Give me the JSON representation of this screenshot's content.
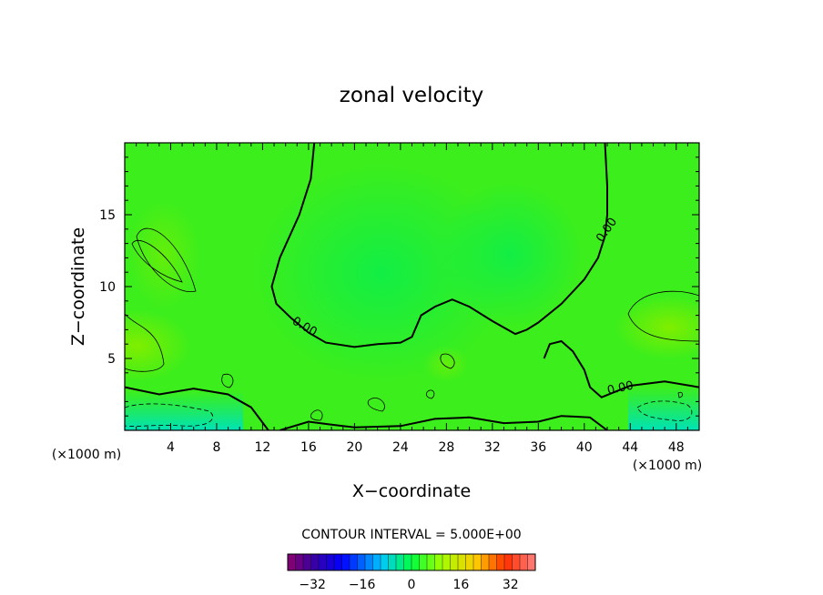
{
  "chart_data": {
    "type": "heatmap",
    "title": "zonal velocity",
    "xlabel": "X−coordinate",
    "ylabel": "Z−coordinate",
    "x_unit_left": "(×1000 m)",
    "x_unit_right": "(×1000 m)",
    "xlim": [
      0,
      50
    ],
    "ylim": [
      0,
      20
    ],
    "x_ticks": [
      4,
      8,
      12,
      16,
      20,
      24,
      28,
      32,
      36,
      40,
      44,
      48
    ],
    "x_tick_labels": [
      "4",
      "8",
      "12",
      "16",
      "20",
      "24",
      "28",
      "32",
      "36",
      "40",
      "44",
      "48"
    ],
    "y_ticks": [
      5,
      10,
      15
    ],
    "y_tick_labels": [
      "5",
      "10",
      "15"
    ],
    "contour_labels": [
      {
        "text": "0.00",
        "x": 15.5,
        "y": 7.0
      },
      {
        "text": "0.00",
        "x": 42.2,
        "y": 13.8
      },
      {
        "text": "0.00",
        "x": 43.2,
        "y": 2.7
      }
    ],
    "zero_contours": [
      [
        [
          16.5,
          20.0
        ],
        [
          16.2,
          17.5
        ],
        [
          15.2,
          15.0
        ],
        [
          13.5,
          12.0
        ],
        [
          12.8,
          10.0
        ],
        [
          13.2,
          8.8
        ],
        [
          14.5,
          7.8
        ],
        [
          16.0,
          6.8
        ],
        [
          17.5,
          6.1
        ],
        [
          20.0,
          5.8
        ],
        [
          22.0,
          6.0
        ],
        [
          24.0,
          6.1
        ],
        [
          25.0,
          6.5
        ],
        [
          25.8,
          8.0
        ],
        [
          27.0,
          8.6
        ],
        [
          28.5,
          9.1
        ],
        [
          30.0,
          8.6
        ],
        [
          32.0,
          7.6
        ],
        [
          34.0,
          6.7
        ],
        [
          35.0,
          7.0
        ],
        [
          36.0,
          7.5
        ],
        [
          38.0,
          8.8
        ],
        [
          40.0,
          10.5
        ],
        [
          41.2,
          12.0
        ],
        [
          41.8,
          13.5
        ],
        [
          42.0,
          15.0
        ],
        [
          42.0,
          17.0
        ],
        [
          41.8,
          20.0
        ]
      ],
      [
        [
          36.5,
          5.0
        ],
        [
          37.0,
          6.0
        ],
        [
          38.0,
          6.2
        ],
        [
          39.0,
          5.5
        ],
        [
          40.0,
          4.2
        ],
        [
          40.5,
          3.0
        ],
        [
          41.5,
          2.3
        ],
        [
          44.0,
          3.1
        ],
        [
          47.0,
          3.4
        ],
        [
          50.0,
          3.0
        ]
      ],
      [
        [
          0.0,
          3.0
        ],
        [
          3.0,
          2.5
        ],
        [
          6.0,
          2.9
        ],
        [
          9.0,
          2.5
        ],
        [
          11.0,
          1.6
        ],
        [
          12.5,
          0.0
        ]
      ],
      [
        [
          13.5,
          0.0
        ],
        [
          16.0,
          0.6
        ],
        [
          18.0,
          0.4
        ],
        [
          20.0,
          0.2
        ],
        [
          24.0,
          0.3
        ],
        [
          27.0,
          0.8
        ],
        [
          30.0,
          0.9
        ],
        [
          33.0,
          0.5
        ],
        [
          36.0,
          0.6
        ],
        [
          38.0,
          1.0
        ],
        [
          40.5,
          0.9
        ],
        [
          42.0,
          0.0
        ]
      ]
    ],
    "colorbar": {
      "label": "CONTOUR INTERVAL = 5.000E+00",
      "interval": 5.0,
      "range": [
        -40,
        40
      ],
      "tick_values": [
        -32,
        -16,
        0,
        16,
        32
      ],
      "tick_labels": [
        "−32",
        "−16",
        "0",
        "16",
        "32"
      ]
    },
    "colors": {
      "background_field": "#3bf01a",
      "core_field": "#16f03a",
      "positive_field": "#78f000",
      "negative_field": "#00e8a8"
    }
  }
}
